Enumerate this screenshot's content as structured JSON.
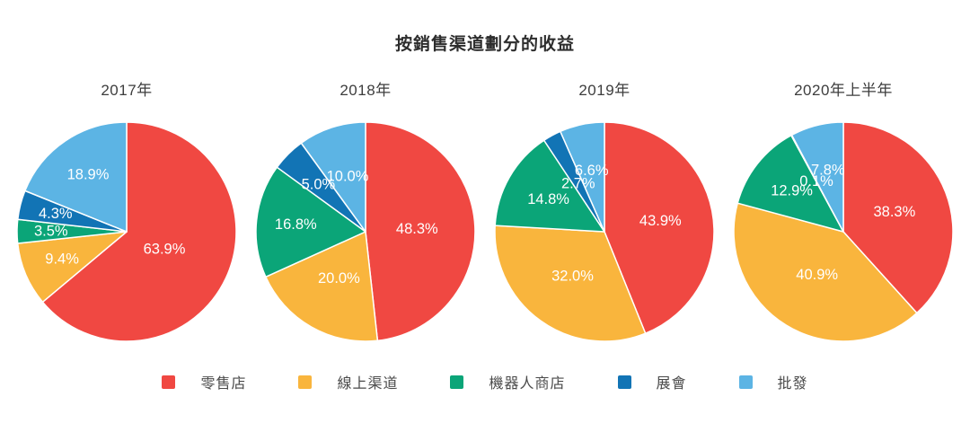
{
  "title": "按銷售渠道劃分的收益",
  "legend": [
    {
      "key": "retail-store",
      "label": "零售店",
      "color": "#F04842"
    },
    {
      "key": "online-channel",
      "label": "線上渠道",
      "color": "#F9B53D"
    },
    {
      "key": "robot-store",
      "label": "機器人商店",
      "color": "#0BA578"
    },
    {
      "key": "exhibition",
      "label": "展會",
      "color": "#1274B5"
    },
    {
      "key": "wholesale",
      "label": "批發",
      "color": "#5CB4E4"
    }
  ],
  "chart_data": {
    "type": "pie",
    "title": "按銷售渠道劃分的收益",
    "categories": [
      "零售店",
      "線上渠道",
      "機器人商店",
      "展會",
      "批發"
    ],
    "keys": [
      "retail-store",
      "online-channel",
      "robot-store",
      "exhibition",
      "wholesale"
    ],
    "colors": [
      "#F04842",
      "#F9B53D",
      "#0BA578",
      "#1274B5",
      "#5CB4E4"
    ],
    "unit": "percent",
    "start_angle": "top",
    "direction": "clockwise",
    "legend_position": "bottom",
    "label_color": "#ffffff",
    "charts": [
      {
        "title": "2017年",
        "values": [
          63.9,
          9.4,
          3.5,
          4.3,
          18.9
        ],
        "label_radius_frac": [
          0.38,
          0.64,
          0.69,
          0.67,
          0.63
        ]
      },
      {
        "title": "2018年",
        "values": [
          48.3,
          20.0,
          16.8,
          5.0,
          10.0
        ],
        "label_radius_frac": [
          0.47,
          0.49,
          0.64,
          0.61,
          0.53
        ]
      },
      {
        "title": "2019年",
        "values": [
          43.9,
          32.0,
          14.8,
          2.7,
          6.6
        ],
        "label_radius_frac": [
          0.52,
          0.5,
          0.59,
          0.5,
          0.57
        ]
      },
      {
        "title": "2020年上半年",
        "values": [
          38.3,
          40.9,
          12.9,
          0.1,
          7.8
        ],
        "label_radius_frac": [
          0.5,
          0.46,
          0.6,
          0.52,
          0.58
        ]
      }
    ]
  }
}
